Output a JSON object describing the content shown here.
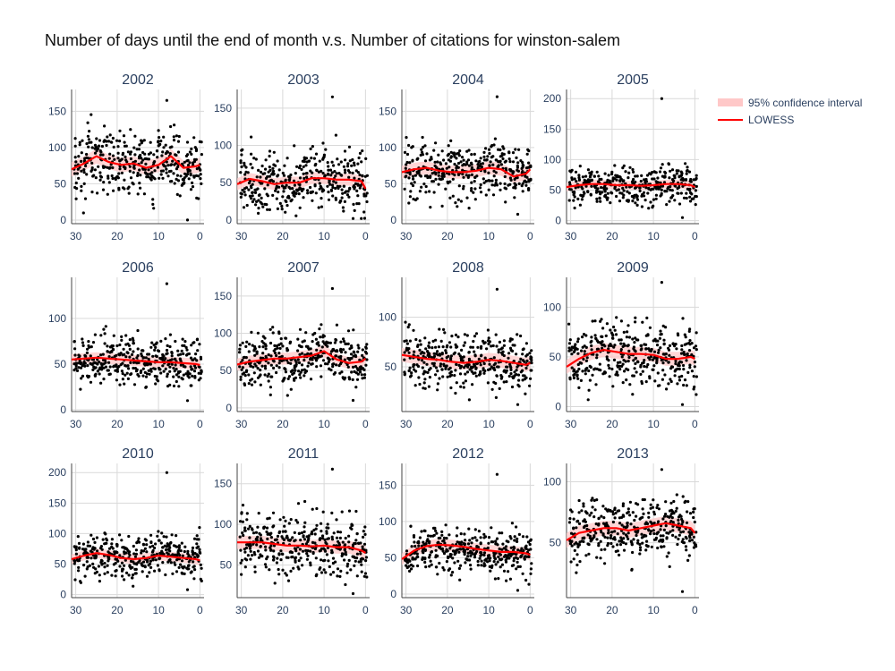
{
  "chart_data": {
    "type": "scatter",
    "title": "Number of days until the end of month v.s. Number of citations for winston-salem",
    "xlabel": "",
    "ylabel": "",
    "x_range": [
      31,
      -1
    ],
    "x_ticks": [
      30,
      20,
      10,
      0
    ],
    "grid": true,
    "legend_position": "top-right",
    "colors": {
      "points": "#000000",
      "lowess": "#ff0000",
      "band": "#ffc8c8",
      "grid": "#d9d9d9"
    },
    "legend": {
      "band_label": "95% confidence interval",
      "line_label": "LOWESS"
    },
    "panels": [
      {
        "year": "2002",
        "ylim": [
          -5,
          180
        ],
        "y_ticks": [
          0,
          50,
          100,
          150
        ],
        "point_stats": {
          "center": 80,
          "spread": 32,
          "min": 0,
          "max": 165
        },
        "lowess": {
          "x": [
            31,
            28,
            25,
            22,
            19,
            16,
            13,
            10,
            7,
            4,
            1,
            0
          ],
          "y": [
            70,
            78,
            88,
            80,
            76,
            78,
            72,
            76,
            88,
            72,
            74,
            76
          ]
        },
        "ci_halfwidth": 10
      },
      {
        "year": "2003",
        "ylim": [
          -5,
          175
        ],
        "y_ticks": [
          0,
          50,
          100,
          150
        ],
        "point_stats": {
          "center": 55,
          "spread": 28,
          "min": 2,
          "max": 165
        },
        "lowess": {
          "x": [
            31,
            28,
            25,
            22,
            19,
            16,
            13,
            10,
            7,
            4,
            1,
            0
          ],
          "y": [
            48,
            55,
            52,
            48,
            50,
            50,
            56,
            56,
            54,
            54,
            52,
            42
          ]
        },
        "ci_halfwidth": 8
      },
      {
        "year": "2004",
        "ylim": [
          -5,
          180
        ],
        "y_ticks": [
          0,
          50,
          100,
          150
        ],
        "point_stats": {
          "center": 68,
          "spread": 28,
          "min": 8,
          "max": 170
        },
        "lowess": {
          "x": [
            31,
            28,
            25,
            22,
            19,
            16,
            13,
            10,
            7,
            4,
            1,
            0
          ],
          "y": [
            66,
            70,
            72,
            68,
            66,
            66,
            68,
            72,
            70,
            60,
            64,
            70
          ]
        },
        "ci_halfwidth": 9
      },
      {
        "year": "2005",
        "ylim": [
          -5,
          215
        ],
        "y_ticks": [
          0,
          50,
          100,
          150,
          200
        ],
        "point_stats": {
          "center": 58,
          "spread": 22,
          "min": 5,
          "max": 200
        },
        "lowess": {
          "x": [
            31,
            28,
            25,
            22,
            19,
            16,
            13,
            10,
            7,
            4,
            1,
            0
          ],
          "y": [
            55,
            58,
            60,
            60,
            58,
            58,
            57,
            58,
            60,
            60,
            58,
            55
          ]
        },
        "ci_halfwidth": 7
      },
      {
        "year": "2006",
        "ylim": [
          -2,
          145
        ],
        "y_ticks": [
          0,
          50,
          100
        ],
        "point_stats": {
          "center": 54,
          "spread": 20,
          "min": 10,
          "max": 138
        },
        "lowess": {
          "x": [
            31,
            28,
            25,
            22,
            19,
            16,
            13,
            10,
            7,
            4,
            1,
            0
          ],
          "y": [
            55,
            56,
            57,
            56,
            55,
            54,
            53,
            52,
            52,
            51,
            50,
            49
          ]
        },
        "ci_halfwidth": 6
      },
      {
        "year": "2007",
        "ylim": [
          -5,
          175
        ],
        "y_ticks": [
          0,
          50,
          100,
          150
        ],
        "point_stats": {
          "center": 65,
          "spread": 25,
          "min": 10,
          "max": 160
        },
        "lowess": {
          "x": [
            31,
            28,
            25,
            22,
            19,
            16,
            13,
            10,
            7,
            4,
            1,
            0
          ],
          "y": [
            58,
            62,
            64,
            66,
            66,
            68,
            70,
            76,
            65,
            60,
            62,
            66
          ]
        },
        "ci_halfwidth": 8
      },
      {
        "year": "2008",
        "ylim": [
          5,
          140
        ],
        "y_ticks": [
          50,
          100
        ],
        "point_stats": {
          "center": 56,
          "spread": 20,
          "min": 12,
          "max": 128
        },
        "lowess": {
          "x": [
            31,
            28,
            25,
            22,
            19,
            16,
            13,
            10,
            7,
            4,
            1,
            0
          ],
          "y": [
            62,
            60,
            58,
            57,
            55,
            54,
            55,
            57,
            56,
            54,
            52,
            54
          ]
        },
        "ci_halfwidth": 7
      },
      {
        "year": "2009",
        "ylim": [
          -5,
          130
        ],
        "y_ticks": [
          0,
          50,
          100
        ],
        "point_stats": {
          "center": 50,
          "spread": 22,
          "min": 2,
          "max": 125
        },
        "lowess": {
          "x": [
            31,
            28,
            25,
            22,
            19,
            16,
            13,
            10,
            7,
            4,
            1,
            0
          ],
          "y": [
            40,
            48,
            54,
            57,
            55,
            53,
            53,
            52,
            48,
            48,
            50,
            48
          ]
        },
        "ci_halfwidth": 7
      },
      {
        "year": "2010",
        "ylim": [
          -5,
          215
        ],
        "y_ticks": [
          0,
          50,
          100,
          150,
          200
        ],
        "point_stats": {
          "center": 60,
          "spread": 25,
          "min": 8,
          "max": 200
        },
        "lowess": {
          "x": [
            31,
            28,
            25,
            22,
            19,
            16,
            13,
            10,
            7,
            4,
            1,
            0
          ],
          "y": [
            58,
            64,
            68,
            65,
            60,
            58,
            60,
            64,
            62,
            60,
            58,
            56
          ]
        },
        "ci_halfwidth": 8
      },
      {
        "year": "2011",
        "ylim": [
          10,
          175
        ],
        "y_ticks": [
          50,
          100,
          150
        ],
        "point_stats": {
          "center": 75,
          "spread": 28,
          "min": 15,
          "max": 168
        },
        "lowess": {
          "x": [
            31,
            28,
            25,
            22,
            19,
            16,
            13,
            10,
            7,
            4,
            1,
            0
          ],
          "y": [
            78,
            78,
            78,
            76,
            74,
            74,
            73,
            74,
            72,
            72,
            68,
            65
          ]
        },
        "ci_halfwidth": 8
      },
      {
        "year": "2012",
        "ylim": [
          -5,
          180
        ],
        "y_ticks": [
          0,
          50,
          100,
          150
        ],
        "point_stats": {
          "center": 62,
          "spread": 22,
          "min": 5,
          "max": 165
        },
        "lowess": {
          "x": [
            31,
            28,
            25,
            22,
            19,
            16,
            13,
            10,
            7,
            4,
            1,
            0
          ],
          "y": [
            48,
            60,
            66,
            68,
            67,
            65,
            62,
            60,
            58,
            58,
            56,
            54
          ]
        },
        "ci_halfwidth": 8
      },
      {
        "year": "2013",
        "ylim": [
          5,
          115
        ],
        "y_ticks": [
          50,
          100
        ],
        "point_stats": {
          "center": 62,
          "spread": 18,
          "min": 10,
          "max": 110
        },
        "lowess": {
          "x": [
            31,
            28,
            25,
            22,
            19,
            16,
            13,
            10,
            7,
            4,
            1,
            0
          ],
          "y": [
            52,
            58,
            60,
            62,
            62,
            60,
            62,
            64,
            66,
            64,
            62,
            58
          ]
        },
        "ci_halfwidth": 6
      }
    ]
  }
}
